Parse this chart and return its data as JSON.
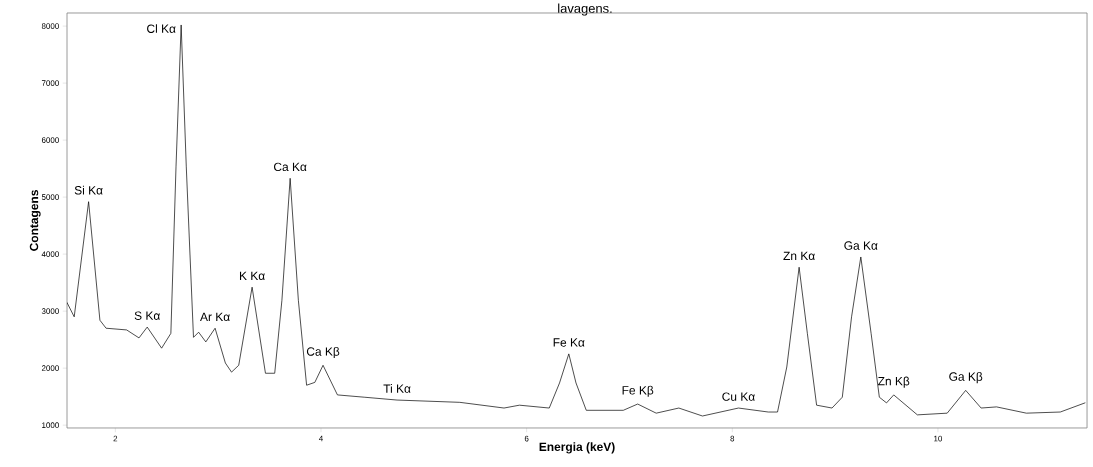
{
  "chart_data": {
    "type": "line",
    "title": "lavagens.",
    "xlabel": "Energia (keV)",
    "ylabel": "Contagens",
    "xlim": [
      1.53,
      11.45
    ],
    "ylim": [
      950,
      8230
    ],
    "xticks": [
      2,
      4,
      6,
      8,
      10
    ],
    "yticks": [
      1000,
      2000,
      3000,
      4000,
      5000,
      6000,
      7000,
      8000
    ],
    "grid": false,
    "marker": "none",
    "line_style": "solid",
    "series": [
      {
        "color": "#000000",
        "x": [
          1.53,
          1.6,
          1.74,
          1.85,
          1.91,
          2.11,
          2.23,
          2.31,
          2.45,
          2.54,
          2.59,
          2.64,
          2.69,
          2.76,
          2.81,
          2.88,
          2.97,
          3.07,
          3.13,
          3.2,
          3.33,
          3.46,
          3.55,
          3.62,
          3.7,
          3.78,
          3.86,
          3.94,
          4.02,
          4.16,
          4.42,
          4.74,
          5.35,
          5.78,
          5.93,
          6.22,
          6.32,
          6.41,
          6.48,
          6.58,
          6.94,
          7.08,
          7.26,
          7.48,
          7.71,
          8.06,
          8.35,
          8.44,
          8.53,
          8.65,
          8.73,
          8.82,
          8.97,
          9.07,
          9.16,
          9.25,
          9.35,
          9.43,
          9.5,
          9.57,
          9.8,
          10.09,
          10.27,
          10.42,
          10.57,
          10.86,
          11.19,
          11.43
        ],
        "values": [
          3150,
          2900,
          4920,
          2840,
          2700,
          2670,
          2530,
          2720,
          2350,
          2610,
          5530,
          8020,
          5530,
          2540,
          2630,
          2460,
          2700,
          2090,
          1930,
          2050,
          3420,
          1910,
          1910,
          3190,
          5330,
          3190,
          1700,
          1750,
          2050,
          1530,
          1490,
          1440,
          1400,
          1300,
          1350,
          1300,
          1740,
          2250,
          1740,
          1260,
          1260,
          1370,
          1210,
          1300,
          1160,
          1300,
          1230,
          1230,
          2020,
          3770,
          2610,
          1350,
          1300,
          1490,
          2900,
          3950,
          2610,
          1490,
          1390,
          1530,
          1180,
          1210,
          1610,
          1300,
          1320,
          1210,
          1230,
          1390
        ]
      }
    ],
    "annotations": [
      {
        "text": "Si Kα",
        "x": 1.74,
        "y": 4920
      },
      {
        "text": "S Kα",
        "x": 2.31,
        "y": 2720
      },
      {
        "text": "Cl Kα",
        "x": 2.64,
        "y": 8020
      },
      {
        "text": "Ar Kα",
        "x": 2.97,
        "y": 2700
      },
      {
        "text": "K Kα",
        "x": 3.33,
        "y": 3420
      },
      {
        "text": "Ca Kα",
        "x": 3.7,
        "y": 5330
      },
      {
        "text": "Ca Kβ",
        "x": 4.02,
        "y": 2050
      },
      {
        "text": "Ti Kα",
        "x": 4.74,
        "y": 1440
      },
      {
        "text": "Fe Kα",
        "x": 6.41,
        "y": 2250
      },
      {
        "text": "Fe Kβ",
        "x": 7.08,
        "y": 1370
      },
      {
        "text": "Cu Kα",
        "x": 8.06,
        "y": 1300
      },
      {
        "text": "Zn Kα",
        "x": 8.65,
        "y": 3770
      },
      {
        "text": "Ga Kα",
        "x": 9.25,
        "y": 3950
      },
      {
        "text": "Zn Kβ",
        "x": 9.57,
        "y": 1530
      },
      {
        "text": "Ga Kβ",
        "x": 10.27,
        "y": 1610
      }
    ]
  }
}
